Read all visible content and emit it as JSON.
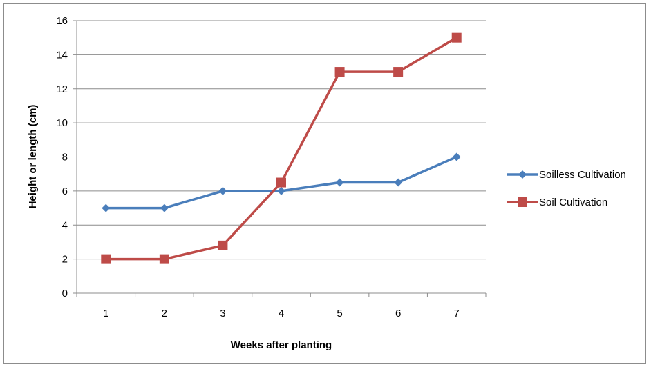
{
  "chart_data": {
    "type": "line",
    "title": "",
    "xlabel": "Weeks after planting",
    "ylabel": "Height or length (cm)",
    "categories": [
      "1",
      "2",
      "3",
      "4",
      "5",
      "6",
      "7"
    ],
    "ylim": [
      0,
      16
    ],
    "yticks": [
      0,
      2,
      4,
      6,
      8,
      10,
      12,
      14,
      16
    ],
    "grid": "horizontal",
    "legend": "right",
    "series": [
      {
        "name": "Soilless Cultivation",
        "values": [
          5,
          5,
          6,
          6,
          6.5,
          6.5,
          8
        ],
        "color": "#4a7ebb",
        "marker": "diamond"
      },
      {
        "name": "Soil Cultivation",
        "values": [
          2,
          2,
          2.8,
          6.5,
          13,
          13,
          15
        ],
        "color": "#be4b48",
        "marker": "square"
      }
    ]
  }
}
